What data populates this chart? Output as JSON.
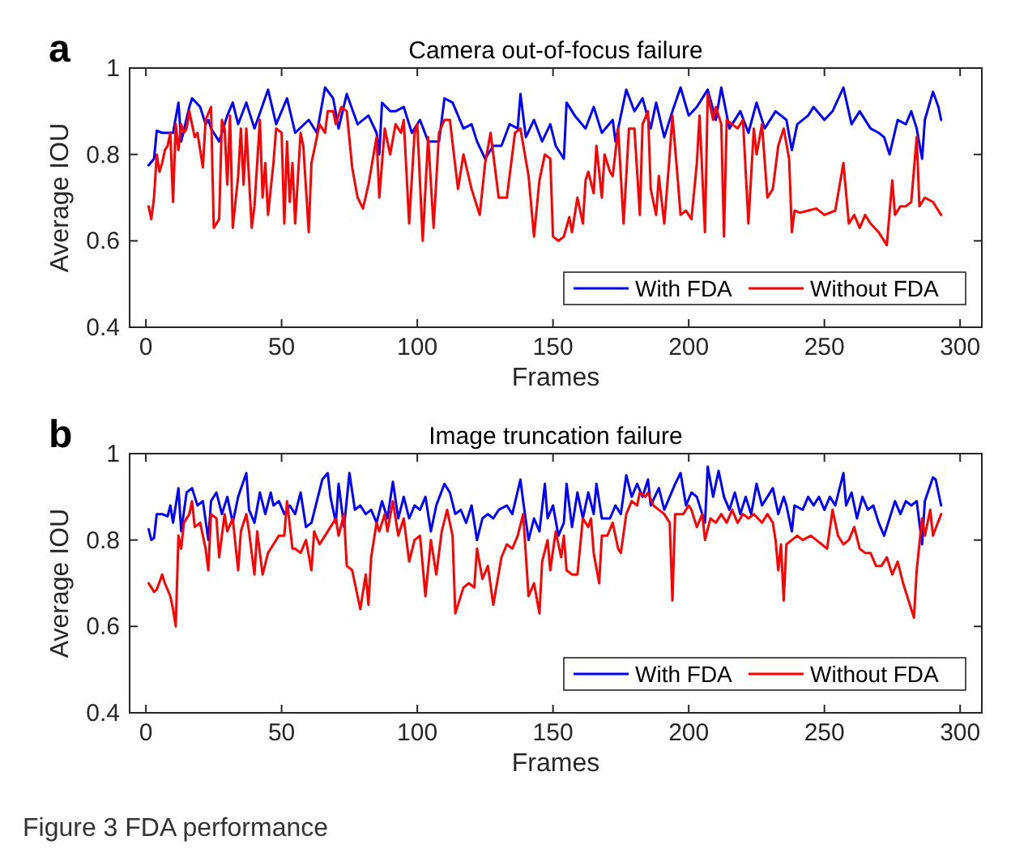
{
  "chart_data": [
    {
      "type": "line",
      "title": "Camera out-of-focus failure",
      "xlabel": "Frames",
      "ylabel": "Average IOU",
      "xlim": [
        -6,
        308
      ],
      "ylim": [
        0.4,
        1
      ],
      "xticks": [
        0,
        50,
        100,
        150,
        200,
        250,
        300
      ],
      "yticks": [
        0.4,
        0.6,
        0.8,
        1
      ],
      "grid": false,
      "legend": "bottom right",
      "marker": "none",
      "line_style": "solid",
      "annotations": [
        "a"
      ],
      "series": [
        {
          "name": "With FDA",
          "color": "#0000ff",
          "x": [
            1,
            3,
            4,
            6,
            8,
            10,
            12,
            13,
            16,
            17,
            20,
            22,
            23,
            24,
            27,
            30,
            32,
            34,
            37,
            40,
            45,
            48,
            52,
            55,
            60,
            63,
            66,
            69,
            71,
            74,
            78,
            82,
            85,
            86,
            87,
            90,
            92,
            95,
            98,
            101,
            104,
            108,
            110,
            113,
            117,
            120,
            122,
            125,
            128,
            131,
            134,
            137,
            138,
            140,
            143,
            146,
            149,
            151,
            154,
            155,
            158,
            162,
            165,
            168,
            172,
            173,
            177,
            180,
            183,
            186,
            188,
            191,
            194,
            197,
            200,
            203,
            207,
            210,
            212,
            215,
            219,
            222,
            225,
            228,
            232,
            236,
            238,
            240,
            244,
            246,
            250,
            253,
            257,
            260,
            263,
            267,
            270,
            272,
            274,
            277,
            280,
            282,
            284,
            286,
            287,
            290,
            292,
            293
          ],
          "values": [
            0.775,
            0.79,
            0.855,
            0.85,
            0.85,
            0.85,
            0.92,
            0.83,
            0.91,
            0.93,
            0.91,
            0.87,
            0.88,
            0.86,
            0.83,
            0.89,
            0.92,
            0.87,
            0.92,
            0.86,
            0.95,
            0.87,
            0.93,
            0.85,
            0.88,
            0.85,
            0.955,
            0.93,
            0.86,
            0.94,
            0.87,
            0.89,
            0.85,
            0.8,
            0.92,
            0.9,
            0.9,
            0.91,
            0.85,
            0.88,
            0.83,
            0.83,
            0.93,
            0.92,
            0.86,
            0.87,
            0.83,
            0.79,
            0.82,
            0.82,
            0.87,
            0.86,
            0.94,
            0.84,
            0.88,
            0.83,
            0.87,
            0.82,
            0.79,
            0.92,
            0.89,
            0.86,
            0.91,
            0.85,
            0.88,
            0.83,
            0.95,
            0.9,
            0.93,
            0.86,
            0.92,
            0.84,
            0.9,
            0.955,
            0.89,
            0.91,
            0.95,
            0.88,
            0.955,
            0.86,
            0.9,
            0.85,
            0.92,
            0.86,
            0.9,
            0.88,
            0.81,
            0.87,
            0.89,
            0.91,
            0.88,
            0.9,
            0.955,
            0.87,
            0.9,
            0.86,
            0.85,
            0.84,
            0.8,
            0.88,
            0.87,
            0.9,
            0.86,
            0.79,
            0.88,
            0.945,
            0.91,
            0.88
          ]
        },
        {
          "name": "Without FDA",
          "color": "#ff0000",
          "x": [
            1,
            2,
            3,
            4,
            5,
            6,
            7,
            8,
            9,
            10,
            11,
            12,
            13,
            14,
            15,
            16,
            18,
            19,
            21,
            22,
            24,
            25,
            27,
            28,
            29,
            30,
            31,
            32,
            34,
            35,
            36,
            37,
            39,
            40,
            42,
            43,
            44,
            45,
            47,
            48,
            50,
            51,
            52,
            53,
            54,
            55,
            57,
            58,
            60,
            61,
            63,
            64,
            66,
            67,
            69,
            70,
            72,
            74,
            76,
            78,
            80,
            82,
            85,
            86,
            88,
            90,
            92,
            94,
            95,
            97,
            99,
            100,
            102,
            104,
            106,
            108,
            110,
            112,
            115,
            117,
            120,
            123,
            125,
            127,
            130,
            133,
            136,
            138,
            141,
            143,
            145,
            147,
            149,
            150,
            152,
            154,
            156,
            157,
            159,
            161,
            162,
            163,
            165,
            166,
            168,
            169,
            171,
            172,
            174,
            176,
            178,
            180,
            182,
            183,
            185,
            186,
            188,
            189,
            191,
            193,
            194,
            196,
            197,
            199,
            201,
            203,
            204,
            206,
            207,
            209,
            210,
            212,
            213,
            214,
            216,
            218,
            220,
            222,
            224,
            225,
            227,
            229,
            231,
            233,
            235,
            237,
            238,
            239,
            241,
            244,
            247,
            250,
            254,
            257,
            259,
            261,
            263,
            265,
            267,
            270,
            273,
            275,
            276,
            278,
            280,
            282,
            284,
            285,
            287,
            290,
            293
          ],
          "values": [
            0.68,
            0.65,
            0.7,
            0.8,
            0.76,
            0.78,
            0.81,
            0.82,
            0.85,
            0.69,
            0.87,
            0.81,
            0.87,
            0.85,
            0.86,
            0.9,
            0.84,
            0.85,
            0.77,
            0.88,
            0.91,
            0.63,
            0.65,
            0.88,
            0.86,
            0.73,
            0.89,
            0.63,
            0.75,
            0.86,
            0.73,
            0.86,
            0.63,
            0.68,
            0.88,
            0.7,
            0.78,
            0.66,
            0.78,
            0.86,
            0.85,
            0.64,
            0.83,
            0.69,
            0.78,
            0.64,
            0.85,
            0.82,
            0.62,
            0.78,
            0.84,
            0.87,
            0.85,
            0.9,
            0.9,
            0.87,
            0.91,
            0.9,
            0.77,
            0.7,
            0.675,
            0.73,
            0.84,
            0.7,
            0.86,
            0.8,
            0.87,
            0.85,
            0.88,
            0.64,
            0.85,
            0.87,
            0.6,
            0.84,
            0.63,
            0.85,
            0.88,
            0.88,
            0.72,
            0.8,
            0.72,
            0.66,
            0.78,
            0.85,
            0.7,
            0.7,
            0.85,
            0.86,
            0.75,
            0.61,
            0.74,
            0.8,
            0.79,
            0.61,
            0.6,
            0.61,
            0.655,
            0.62,
            0.7,
            0.64,
            0.74,
            0.76,
            0.71,
            0.82,
            0.7,
            0.8,
            0.76,
            0.75,
            0.86,
            0.64,
            0.86,
            0.86,
            0.66,
            0.87,
            0.9,
            0.72,
            0.66,
            0.75,
            0.64,
            0.8,
            0.89,
            0.74,
            0.66,
            0.67,
            0.65,
            0.78,
            0.89,
            0.62,
            0.94,
            0.88,
            0.91,
            0.87,
            0.61,
            0.88,
            0.87,
            0.86,
            0.88,
            0.64,
            0.86,
            0.8,
            0.87,
            0.7,
            0.72,
            0.82,
            0.86,
            0.79,
            0.62,
            0.67,
            0.665,
            0.67,
            0.675,
            0.66,
            0.67,
            0.78,
            0.64,
            0.66,
            0.63,
            0.66,
            0.64,
            0.62,
            0.59,
            0.74,
            0.66,
            0.68,
            0.68,
            0.69,
            0.84,
            0.68,
            0.7,
            0.69,
            0.66
          ]
        }
      ]
    },
    {
      "type": "line",
      "title": "Image truncation failure",
      "xlabel": "Frames",
      "ylabel": "Average IOU",
      "xlim": [
        -6,
        308
      ],
      "ylim": [
        0.4,
        1
      ],
      "xticks": [
        0,
        50,
        100,
        150,
        200,
        250,
        300
      ],
      "yticks": [
        0.4,
        0.6,
        0.8,
        1
      ],
      "grid": false,
      "legend": "bottom right",
      "marker": "none",
      "line_style": "solid",
      "annotations": [
        "b",
        "Figure 3  FDA performance"
      ],
      "series": [
        {
          "name": "With FDA",
          "color": "#0000ff",
          "x": [
            1,
            2,
            3,
            4,
            6,
            8,
            9,
            10,
            12,
            13,
            15,
            17,
            19,
            21,
            23,
            24,
            26,
            28,
            30,
            32,
            34,
            37,
            38,
            40,
            42,
            44,
            46,
            47,
            49,
            51,
            53,
            55,
            57,
            59,
            61,
            63,
            65,
            67,
            68,
            70,
            71,
            73,
            75,
            77,
            79,
            81,
            83,
            85,
            87,
            89,
            91,
            93,
            95,
            97,
            99,
            101,
            103,
            105,
            107,
            110,
            112,
            114,
            116,
            118,
            120,
            122,
            124,
            126,
            128,
            130,
            133,
            135,
            138,
            139,
            141,
            143,
            145,
            147,
            148,
            150,
            152,
            154,
            155,
            157,
            159,
            161,
            163,
            165,
            166,
            168,
            171,
            173,
            175,
            177,
            179,
            181,
            183,
            185,
            186,
            189,
            191,
            193,
            195,
            197,
            199,
            201,
            203,
            206,
            207,
            209,
            211,
            213,
            215,
            217,
            219,
            221,
            223,
            225,
            227,
            229,
            231,
            233,
            235,
            236,
            238,
            239,
            242,
            244,
            246,
            248,
            250,
            252,
            254,
            257,
            258,
            260,
            262,
            264,
            266,
            268,
            270,
            272,
            274,
            276,
            278,
            280,
            282,
            284,
            286,
            287,
            290,
            291,
            293
          ],
          "values": [
            0.825,
            0.8,
            0.805,
            0.86,
            0.86,
            0.855,
            0.88,
            0.84,
            0.92,
            0.82,
            0.91,
            0.92,
            0.88,
            0.89,
            0.8,
            0.89,
            0.91,
            0.86,
            0.9,
            0.84,
            0.9,
            0.955,
            0.87,
            0.84,
            0.91,
            0.86,
            0.91,
            0.88,
            0.89,
            0.86,
            0.88,
            0.86,
            0.91,
            0.83,
            0.84,
            0.89,
            0.94,
            0.955,
            0.9,
            0.84,
            0.93,
            0.83,
            0.955,
            0.87,
            0.88,
            0.86,
            0.87,
            0.84,
            0.89,
            0.85,
            0.935,
            0.85,
            0.9,
            0.85,
            0.88,
            0.87,
            0.9,
            0.82,
            0.88,
            0.93,
            0.91,
            0.86,
            0.87,
            0.84,
            0.88,
            0.8,
            0.85,
            0.86,
            0.85,
            0.87,
            0.88,
            0.86,
            0.94,
            0.89,
            0.8,
            0.85,
            0.82,
            0.93,
            0.85,
            0.88,
            0.81,
            0.84,
            0.93,
            0.83,
            0.91,
            0.85,
            0.91,
            0.86,
            0.93,
            0.85,
            0.85,
            0.88,
            0.86,
            0.95,
            0.9,
            0.93,
            0.9,
            0.94,
            0.88,
            0.92,
            0.87,
            0.9,
            0.93,
            0.955,
            0.88,
            0.91,
            0.9,
            0.84,
            0.97,
            0.9,
            0.96,
            0.9,
            0.87,
            0.91,
            0.86,
            0.9,
            0.86,
            0.93,
            0.88,
            0.9,
            0.92,
            0.86,
            0.9,
            0.88,
            0.82,
            0.88,
            0.87,
            0.9,
            0.88,
            0.9,
            0.87,
            0.9,
            0.88,
            0.955,
            0.88,
            0.91,
            0.85,
            0.9,
            0.87,
            0.88,
            0.84,
            0.81,
            0.85,
            0.89,
            0.86,
            0.89,
            0.88,
            0.89,
            0.79,
            0.89,
            0.945,
            0.94,
            0.88
          ]
        },
        {
          "name": "Without FDA",
          "color": "#ff0000",
          "x": [
            1,
            2,
            3,
            4,
            6,
            7,
            9,
            10,
            11,
            12,
            13,
            14,
            16,
            17,
            18,
            20,
            22,
            23,
            24,
            26,
            27,
            29,
            30,
            32,
            34,
            35,
            37,
            38,
            40,
            41,
            43,
            45,
            47,
            49,
            51,
            52,
            54,
            55,
            57,
            59,
            61,
            62,
            64,
            66,
            68,
            70,
            71,
            73,
            74,
            76,
            78,
            79,
            81,
            82,
            83,
            85,
            86,
            88,
            89,
            91,
            93,
            95,
            97,
            99,
            101,
            103,
            105,
            107,
            109,
            111,
            113,
            114,
            117,
            119,
            121,
            122,
            124,
            126,
            128,
            131,
            133,
            135,
            137,
            139,
            141,
            143,
            145,
            146,
            148,
            149,
            151,
            153,
            154,
            155,
            157,
            159,
            161,
            163,
            164,
            165,
            167,
            168,
            170,
            172,
            174,
            175,
            177,
            179,
            181,
            182,
            184,
            185,
            187,
            189,
            191,
            193,
            194,
            195,
            198,
            200,
            201,
            203,
            205,
            206,
            208,
            210,
            212,
            214,
            216,
            218,
            220,
            222,
            224,
            227,
            229,
            231,
            232,
            233,
            234,
            235,
            236,
            238,
            240,
            242,
            245,
            247,
            249,
            251,
            253,
            255,
            257,
            259,
            261,
            263,
            265,
            267,
            269,
            271,
            273,
            275,
            277,
            279,
            281,
            283,
            284,
            286,
            287,
            289,
            290,
            293
          ],
          "values": [
            0.7,
            0.69,
            0.68,
            0.685,
            0.72,
            0.7,
            0.67,
            0.64,
            0.6,
            0.81,
            0.78,
            0.84,
            0.86,
            0.89,
            0.83,
            0.84,
            0.78,
            0.73,
            0.86,
            0.85,
            0.76,
            0.86,
            0.82,
            0.85,
            0.73,
            0.82,
            0.86,
            0.82,
            0.72,
            0.82,
            0.72,
            0.77,
            0.79,
            0.81,
            0.81,
            0.89,
            0.78,
            0.78,
            0.77,
            0.8,
            0.73,
            0.82,
            0.79,
            0.81,
            0.83,
            0.85,
            0.81,
            0.86,
            0.74,
            0.73,
            0.67,
            0.64,
            0.72,
            0.65,
            0.76,
            0.84,
            0.82,
            0.86,
            0.82,
            0.89,
            0.81,
            0.85,
            0.75,
            0.8,
            0.81,
            0.67,
            0.8,
            0.72,
            0.82,
            0.87,
            0.81,
            0.63,
            0.69,
            0.7,
            0.69,
            0.78,
            0.71,
            0.74,
            0.65,
            0.76,
            0.79,
            0.78,
            0.81,
            0.86,
            0.67,
            0.7,
            0.63,
            0.75,
            0.8,
            0.73,
            0.82,
            0.76,
            0.81,
            0.73,
            0.72,
            0.72,
            0.85,
            0.83,
            0.85,
            0.77,
            0.7,
            0.81,
            0.81,
            0.84,
            0.78,
            0.77,
            0.86,
            0.89,
            0.88,
            0.91,
            0.9,
            0.91,
            0.88,
            0.87,
            0.86,
            0.84,
            0.66,
            0.86,
            0.86,
            0.88,
            0.87,
            0.83,
            0.86,
            0.8,
            0.85,
            0.84,
            0.86,
            0.84,
            0.87,
            0.84,
            0.86,
            0.85,
            0.86,
            0.84,
            0.86,
            0.84,
            0.8,
            0.73,
            0.79,
            0.66,
            0.79,
            0.8,
            0.81,
            0.8,
            0.81,
            0.8,
            0.79,
            0.78,
            0.87,
            0.81,
            0.79,
            0.8,
            0.83,
            0.78,
            0.77,
            0.77,
            0.74,
            0.74,
            0.76,
            0.72,
            0.75,
            0.7,
            0.66,
            0.62,
            0.73,
            0.85,
            0.81,
            0.87,
            0.81,
            0.86
          ]
        }
      ]
    }
  ]
}
